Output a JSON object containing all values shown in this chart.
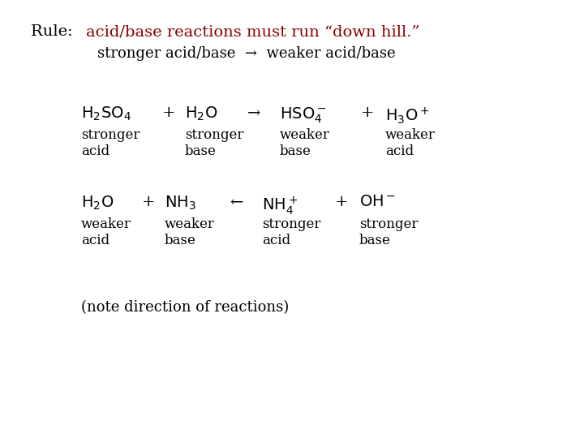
{
  "bg_color": "#ffffff",
  "title_black": "Rule:  ",
  "title_red": "acid/base reactions must run “down hill.”",
  "subtitle": "stronger acid/base  →  weaker acid/base",
  "note": "(note direction of reactions)",
  "font_size_title": 14,
  "font_size_body": 12,
  "font_size_formula": 14,
  "red_color": "#8B0000"
}
